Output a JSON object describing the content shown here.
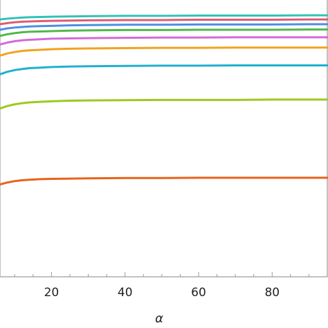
{
  "chart_data": {
    "type": "line",
    "title": "",
    "xlabel": "α",
    "ylabel": "",
    "xlim": [
      6,
      95
    ],
    "ylim": [
      0,
      1
    ],
    "grid": false,
    "legend": "none",
    "x_ticks": [
      20,
      40,
      60,
      80
    ],
    "x_tick_labels": [
      "20",
      "40",
      "60",
      "80"
    ],
    "x_minor_ticks": [
      10,
      15,
      25,
      30,
      35,
      45,
      50,
      55,
      65,
      70,
      75,
      85,
      90
    ],
    "x": [
      6,
      8,
      10,
      12,
      14,
      17,
      20,
      25,
      30,
      40,
      50,
      60,
      70,
      80,
      90,
      95
    ],
    "series": [
      {
        "color": "#2ec4b6",
        "values": [
          0.925,
          0.928,
          0.93,
          0.932,
          0.933,
          0.934,
          0.935,
          0.936,
          0.937,
          0.938,
          0.938,
          0.939,
          0.939,
          0.939,
          0.94,
          0.94
        ]
      },
      {
        "color": "#e05a74",
        "values": [
          0.908,
          0.912,
          0.915,
          0.917,
          0.918,
          0.919,
          0.92,
          0.921,
          0.922,
          0.923,
          0.923,
          0.924,
          0.924,
          0.924,
          0.925,
          0.925
        ]
      },
      {
        "color": "#4b8fe2",
        "values": [
          0.888,
          0.893,
          0.896,
          0.898,
          0.9,
          0.901,
          0.902,
          0.904,
          0.905,
          0.906,
          0.906,
          0.907,
          0.907,
          0.907,
          0.908,
          0.908
        ]
      },
      {
        "color": "#4fb84a",
        "values": [
          0.866,
          0.872,
          0.876,
          0.879,
          0.881,
          0.882,
          0.883,
          0.885,
          0.886,
          0.887,
          0.887,
          0.888,
          0.888,
          0.888,
          0.889,
          0.889
        ]
      },
      {
        "color": "#d16ad8",
        "values": [
          0.835,
          0.842,
          0.847,
          0.85,
          0.852,
          0.854,
          0.856,
          0.857,
          0.858,
          0.859,
          0.86,
          0.86,
          0.861,
          0.861,
          0.861,
          0.861
        ]
      },
      {
        "color": "#f2a21c",
        "values": [
          0.795,
          0.803,
          0.808,
          0.812,
          0.814,
          0.816,
          0.818,
          0.82,
          0.821,
          0.822,
          0.823,
          0.823,
          0.824,
          0.824,
          0.824,
          0.824
        ]
      },
      {
        "color": "#1fb0d0",
        "values": [
          0.728,
          0.737,
          0.743,
          0.747,
          0.75,
          0.752,
          0.754,
          0.756,
          0.757,
          0.758,
          0.759,
          0.759,
          0.76,
          0.76,
          0.76,
          0.76
        ]
      },
      {
        "color": "#9cc91e",
        "values": [
          0.605,
          0.614,
          0.62,
          0.624,
          0.627,
          0.629,
          0.631,
          0.633,
          0.634,
          0.635,
          0.636,
          0.636,
          0.636,
          0.637,
          0.637,
          0.637
        ]
      },
      {
        "color": "#e8621a",
        "values": [
          0.332,
          0.339,
          0.344,
          0.347,
          0.349,
          0.351,
          0.352,
          0.353,
          0.354,
          0.355,
          0.355,
          0.356,
          0.356,
          0.356,
          0.356,
          0.356
        ]
      }
    ]
  }
}
